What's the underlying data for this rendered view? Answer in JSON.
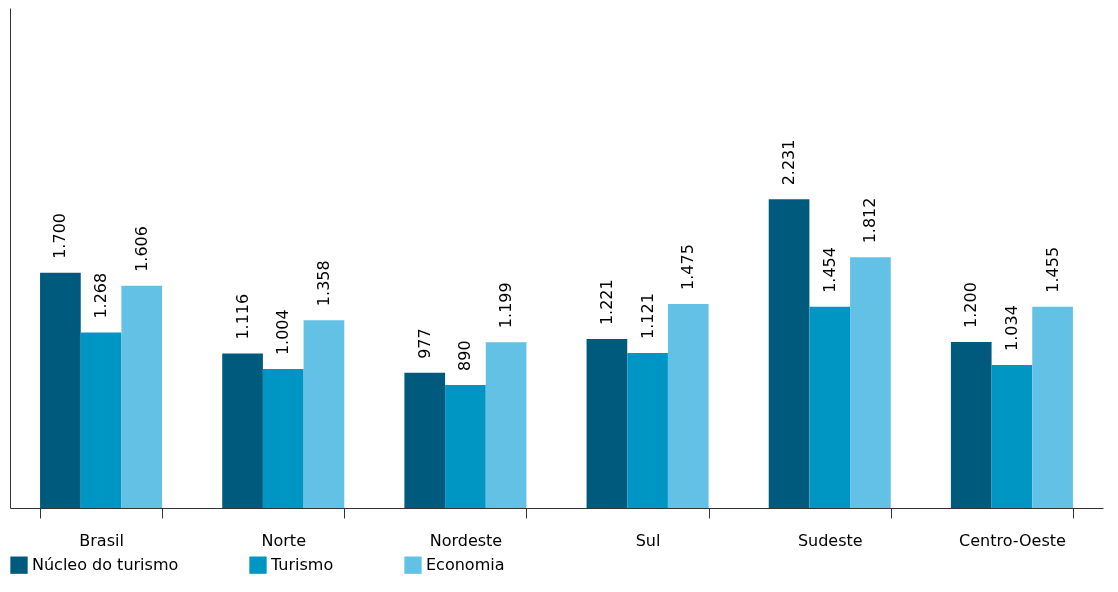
{
  "chart_data": {
    "type": "bar",
    "categories": [
      "Brasil",
      "Norte",
      "Nordeste",
      "Sul",
      "Sudeste",
      "Centro-Oeste"
    ],
    "series": [
      {
        "name": "Núcleo do turismo",
        "color": "#005a7d",
        "values": [
          1700,
          1116,
          977,
          1221,
          2231,
          1200
        ],
        "value_labels": [
          "1.700",
          "1.116",
          "977",
          "1.221",
          "2.231",
          "1.200"
        ]
      },
      {
        "name": "Turismo",
        "color": "#0096c3",
        "values": [
          1268,
          1004,
          890,
          1121,
          1454,
          1034
        ],
        "value_labels": [
          "1.268",
          "1.004",
          "890",
          "1.121",
          "1.454",
          "1.034"
        ]
      },
      {
        "name": "Economia",
        "color": "#63c1e6",
        "values": [
          1606,
          1358,
          1199,
          1475,
          1812,
          1455
        ],
        "value_labels": [
          "1.606",
          "1.358",
          "1.199",
          "1.475",
          "1.812",
          "1.455"
        ]
      }
    ],
    "legend": "bottom"
  }
}
